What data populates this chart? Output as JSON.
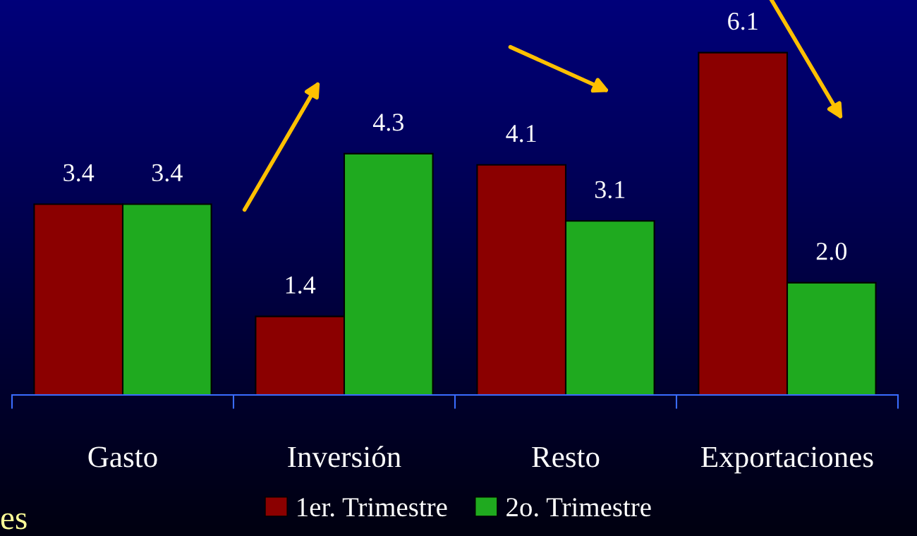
{
  "chart_data": {
    "type": "bar",
    "categories": [
      "Gasto",
      "Inversión",
      "Resto",
      "Exportaciones"
    ],
    "series": [
      {
        "name": "1er. Trimestre",
        "color": "#8b0000",
        "values": [
          3.4,
          1.4,
          4.1,
          6.1
        ],
        "value_labels": [
          "3.4",
          "1.4",
          "4.1",
          "6.1"
        ]
      },
      {
        "name": "2o. Trimestre",
        "color": "#1faa1f",
        "values": [
          3.4,
          4.3,
          3.1,
          2.0
        ],
        "value_labels": [
          "3.4",
          "4.3",
          "3.1",
          "2.0"
        ]
      }
    ],
    "ylim": [
      0,
      7
    ],
    "tick_labels": "x",
    "grid": false,
    "legend": "bottom",
    "annotations": [
      "es"
    ]
  }
}
